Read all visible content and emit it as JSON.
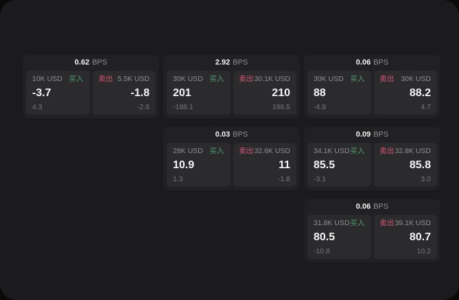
{
  "labels": {
    "bps_unit": "BPS",
    "buy": "买入",
    "sell": "卖出"
  },
  "colors": {
    "outer_bg": "#0a0a0a",
    "panel_bg": "#1b1b1d",
    "card_bg": "#212123",
    "cell_bg": "#2b2b2d",
    "text_primary": "#f5f5f5",
    "text_secondary": "#8f8f93",
    "text_faint": "#78787c",
    "buy_green": "#4f9e6e",
    "sell_red": "#d65573"
  },
  "cards": [
    {
      "row": 1,
      "col": 1,
      "bps": "0.62",
      "buy": {
        "amount": "10K USD",
        "price": "-3.7",
        "delta": "4.3"
      },
      "sell": {
        "amount": "5.5K USD",
        "price": "-1.8",
        "delta": "-2.6"
      }
    },
    {
      "row": 1,
      "col": 2,
      "bps": "2.92",
      "buy": {
        "amount": "30K USD",
        "price": "201",
        "delta": "-188.1"
      },
      "sell": {
        "amount": "30.1K USD",
        "price": "210",
        "delta": "196.5"
      }
    },
    {
      "row": 1,
      "col": 3,
      "bps": "0.06",
      "buy": {
        "amount": "30K USD",
        "price": "88",
        "delta": "-4.9"
      },
      "sell": {
        "amount": "30K USD",
        "price": "88.2",
        "delta": "4.7"
      }
    },
    {
      "row": 2,
      "col": 2,
      "bps": "0.03",
      "buy": {
        "amount": "28K USD",
        "price": "10.9",
        "delta": "1.3"
      },
      "sell": {
        "amount": "32.6K USD",
        "price": "11",
        "delta": "-1.8"
      }
    },
    {
      "row": 2,
      "col": 3,
      "bps": "0.09",
      "buy": {
        "amount": "34.1K USD",
        "price": "85.5",
        "delta": "-3.1"
      },
      "sell": {
        "amount": "32.8K USD",
        "price": "85.8",
        "delta": "3.0"
      }
    },
    {
      "row": 3,
      "col": 3,
      "bps": "0.06",
      "buy": {
        "amount": "31.8K USD",
        "price": "80.5",
        "delta": "-10.8"
      },
      "sell": {
        "amount": "39.1K USD",
        "price": "80.7",
        "delta": "10.2"
      }
    }
  ]
}
